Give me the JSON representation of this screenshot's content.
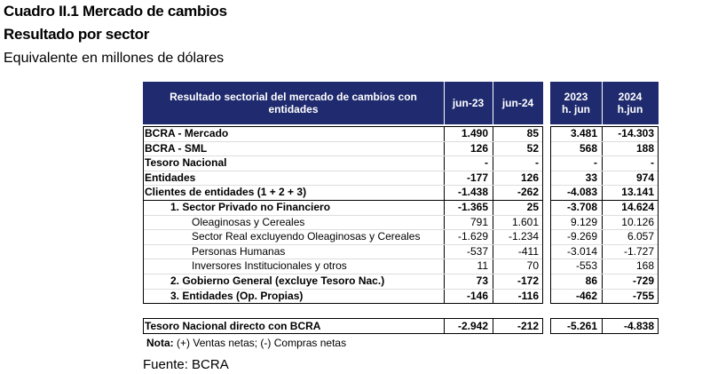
{
  "header": {
    "title": "Cuadro II.1 Mercado de cambios",
    "subtitle": "Resultado por sector",
    "unit": "Equivalente en millones de dólares"
  },
  "table": {
    "columns": [
      "Resultado sectorial del mercado de cambios con entidades",
      "jun-23",
      "jun-24",
      "2023 h. jun",
      "2024 h.jun"
    ],
    "rows": [
      [
        "BCRA - Mercado",
        "1.490",
        "85",
        "3.481",
        "-14.303"
      ],
      [
        "BCRA - SML",
        "126",
        "52",
        "568",
        "188"
      ],
      [
        "Tesoro Nacional",
        "-",
        "-",
        "-",
        "-"
      ],
      [
        "Entidades",
        "-177",
        "126",
        "33",
        "974"
      ],
      [
        "Clientes de entidades (1 + 2 + 3)",
        "-1.438",
        "-262",
        "-4.083",
        "13.141"
      ],
      [
        "1. Sector Privado no Financiero",
        "-1.365",
        "25",
        "-3.708",
        "14.624"
      ],
      [
        "Oleaginosas y Cereales",
        "791",
        "1.601",
        "9.129",
        "10.126"
      ],
      [
        "Sector Real excluyendo Oleaginosas y Cereales",
        "-1.629",
        "-1.234",
        "-9.269",
        "6.057"
      ],
      [
        "Personas Humanas",
        "-537",
        "-411",
        "-3.014",
        "-1.727"
      ],
      [
        "Inversores Institucionales y otros",
        "11",
        "70",
        "-553",
        "168"
      ],
      [
        "2. Gobierno General (excluye Tesoro Nac.)",
        "73",
        "-172",
        "86",
        "-729"
      ],
      [
        "3. Entidades (Op. Propias)",
        "-146",
        "-116",
        "-462",
        "-755"
      ]
    ],
    "total_row": [
      "Tesoro Nacional directo con BCRA",
      "-2.942",
      "-212",
      "-5.261",
      "-4.838"
    ]
  },
  "note": {
    "label": "Nota:",
    "text": "(+) Ventas netas; (-) Compras netas"
  },
  "source": "Fuente: BCRA"
}
